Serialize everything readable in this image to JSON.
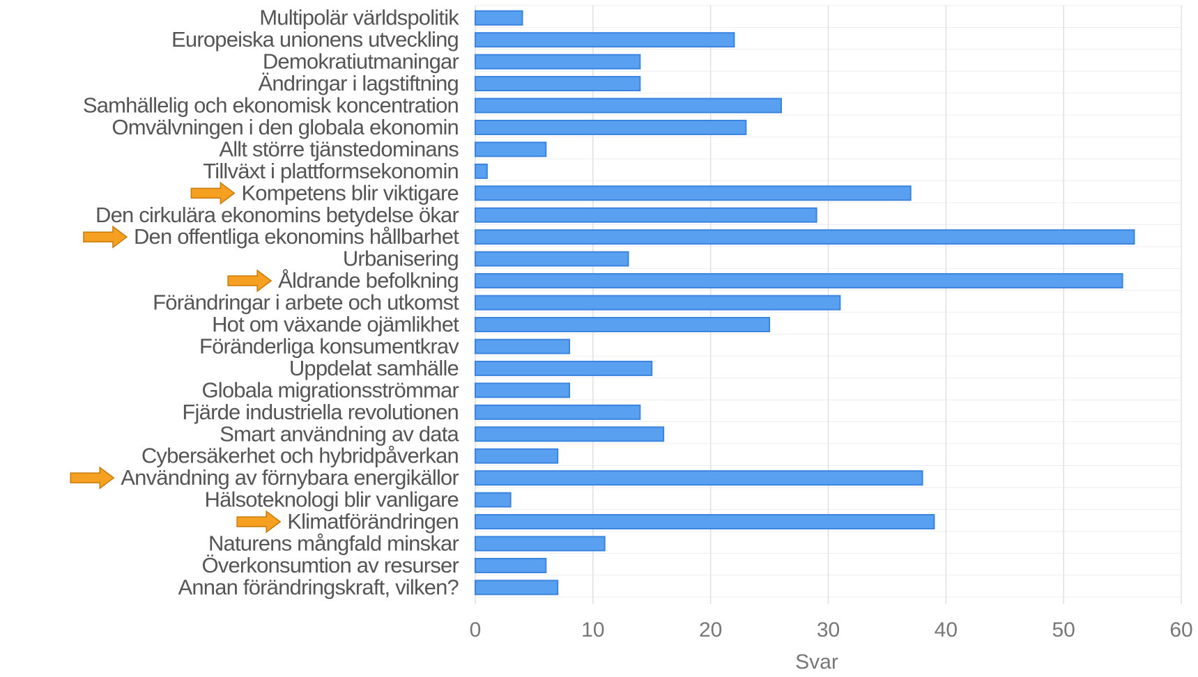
{
  "chart_data": {
    "type": "bar",
    "orientation": "horizontal",
    "xlabel": "Svar",
    "ylabel": "",
    "xlim": [
      0,
      60
    ],
    "xticks": [
      0,
      10,
      20,
      30,
      40,
      50,
      60
    ],
    "grid": true,
    "bar_color": "#5aa0f0",
    "highlight_color": "#f5a020",
    "highlight_marker": "arrow-icon",
    "categories": [
      "Multipolär världspolitik",
      "Europeiska unionens utveckling",
      "Demokratiutmaningar",
      "Ändringar i lagstiftning",
      "Samhällelig och ekonomisk koncentration",
      "Omvälvningen i den globala ekonomin",
      "Allt större tjänstedominans",
      "Tillväxt i plattformsekonomin",
      "Kompetens blir viktigare",
      "Den cirkulära ekonomins betydelse ökar",
      "Den offentliga ekonomins hållbarhet",
      "Urbanisering",
      "Åldrande befolkning",
      "Förändringar i arbete och utkomst",
      "Hot om växande ojämlikhet",
      "Föränderliga konsumentkrav",
      "Uppdelat samhälle",
      "Globala migrationsströmmar",
      "Fjärde industriella revolutionen",
      "Smart användning av data",
      "Cybersäkerhet och hybridpåverkan",
      "Användning av förnybara energikällor",
      "Hälsoteknologi blir  vanligare",
      "Klimatförändringen",
      "Naturens mångfald minskar",
      "Överkonsumtion av resurser",
      "Annan förändringskraft, vilken?"
    ],
    "values": [
      4,
      22,
      14,
      14,
      26,
      23,
      6,
      1,
      37,
      29,
      56,
      13,
      55,
      31,
      25,
      8,
      15,
      8,
      14,
      16,
      7,
      38,
      3,
      39,
      11,
      6,
      7
    ],
    "highlighted": [
      "Kompetens blir viktigare",
      "Den offentliga ekonomins hållbarhet",
      "Åldrande befolkning",
      "Användning av förnybara energikällor",
      "Klimatförändringen"
    ]
  }
}
